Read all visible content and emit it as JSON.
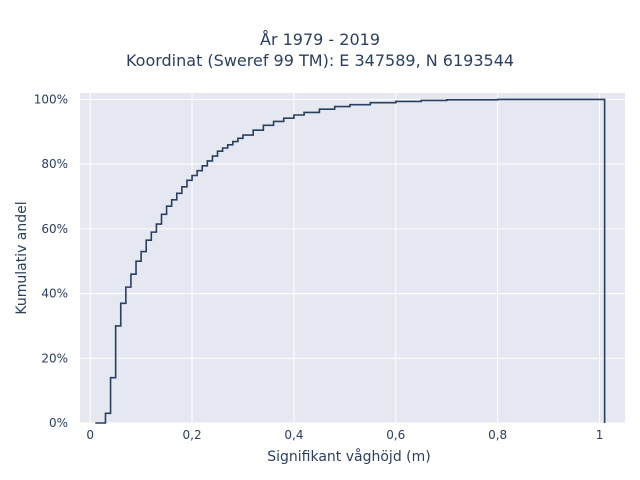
{
  "chart_data": {
    "type": "line",
    "subtype": "empirical-cdf-step",
    "title_lines": [
      "År 1979 - 2019",
      "Koordinat (Sweref 99 TM): E 347589, N 6193544"
    ],
    "xlabel": "Signifikant våghöjd (m)",
    "ylabel": "Kumulativ andel",
    "xlim": [
      -0.02,
      1.05
    ],
    "ylim": [
      0,
      1.02
    ],
    "x_ticks": [
      0,
      0.2,
      0.4,
      0.6,
      0.8,
      1.0
    ],
    "x_tick_labels": [
      "0",
      "0,2",
      "0,4",
      "0,6",
      "0,8",
      "1"
    ],
    "y_ticks": [
      0,
      0.2,
      0.4,
      0.6,
      0.8,
      1.0
    ],
    "y_tick_labels": [
      "0%",
      "20%",
      "40%",
      "60%",
      "80%",
      "100%"
    ],
    "grid": true,
    "line_color": "#2a3f5f",
    "plot_background": "#e5e8f0",
    "x": [
      0.02,
      0.03,
      0.04,
      0.05,
      0.06,
      0.07,
      0.08,
      0.09,
      0.1,
      0.11,
      0.12,
      0.13,
      0.14,
      0.15,
      0.16,
      0.17,
      0.18,
      0.19,
      0.2,
      0.21,
      0.22,
      0.23,
      0.24,
      0.25,
      0.26,
      0.27,
      0.28,
      0.29,
      0.3,
      0.32,
      0.34,
      0.36,
      0.38,
      0.4,
      0.42,
      0.45,
      0.48,
      0.51,
      0.55,
      0.6,
      0.65,
      0.7,
      0.8,
      0.9,
      1.01
    ],
    "y": [
      0.0,
      0.03,
      0.14,
      0.3,
      0.37,
      0.42,
      0.46,
      0.5,
      0.53,
      0.565,
      0.59,
      0.615,
      0.645,
      0.67,
      0.69,
      0.71,
      0.73,
      0.75,
      0.765,
      0.78,
      0.795,
      0.81,
      0.825,
      0.84,
      0.85,
      0.86,
      0.87,
      0.88,
      0.89,
      0.905,
      0.92,
      0.932,
      0.942,
      0.952,
      0.96,
      0.97,
      0.978,
      0.984,
      0.99,
      0.994,
      0.997,
      0.999,
      1.0,
      1.0,
      1.0
    ]
  }
}
